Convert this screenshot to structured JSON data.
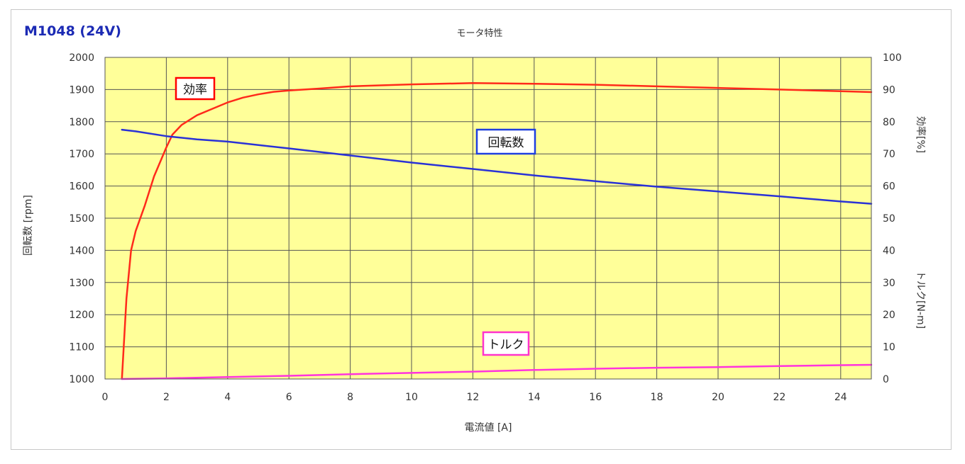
{
  "model_title": "M1048 (24V)",
  "chart_data": {
    "type": "line",
    "title": "モータ特性",
    "xlabel": "電流値 [A]",
    "ylabel_left": "回転数 [rpm]",
    "ylabel_right_top": "効率[%]",
    "ylabel_right_bottom": "トルク[N-m]",
    "xlim": [
      0,
      25
    ],
    "ylim_left": [
      1000,
      2000
    ],
    "ylim_right": [
      0,
      100
    ],
    "xticks": [
      0,
      2,
      4,
      6,
      8,
      10,
      12,
      14,
      16,
      18,
      20,
      22,
      24
    ],
    "yticks_left": [
      1000,
      1100,
      1200,
      1300,
      1400,
      1500,
      1600,
      1700,
      1800,
      1900,
      2000
    ],
    "yticks_right": [
      0,
      10,
      20,
      30,
      40,
      50,
      60,
      70,
      80,
      90,
      100
    ],
    "grid": true,
    "plot_background": "#ffff99",
    "series": [
      {
        "name": "効率",
        "axis": "right",
        "color": "#ff2a1a",
        "label_color": "#ff0000",
        "points": [
          [
            0.55,
            0
          ],
          [
            0.7,
            25
          ],
          [
            0.85,
            40
          ],
          [
            1.0,
            46
          ],
          [
            1.3,
            54
          ],
          [
            1.6,
            63
          ],
          [
            2.0,
            72
          ],
          [
            2.2,
            76
          ],
          [
            2.5,
            79
          ],
          [
            3.0,
            82
          ],
          [
            3.5,
            84
          ],
          [
            4.0,
            86
          ],
          [
            4.5,
            87.5
          ],
          [
            5.0,
            88.5
          ],
          [
            5.5,
            89.3
          ],
          [
            6.0,
            89.7
          ],
          [
            7.0,
            90.3
          ],
          [
            8.0,
            91
          ],
          [
            10.0,
            91.6
          ],
          [
            12.0,
            92
          ],
          [
            14.0,
            91.8
          ],
          [
            16.0,
            91.5
          ],
          [
            18.0,
            91
          ],
          [
            20.0,
            90.5
          ],
          [
            22.0,
            90
          ],
          [
            24.0,
            89.5
          ],
          [
            25.0,
            89.2
          ]
        ]
      },
      {
        "name": "回転数",
        "axis": "left",
        "color": "#2a32d6",
        "label_color": "#1f3fe0",
        "points": [
          [
            0.55,
            1775
          ],
          [
            1.0,
            1770
          ],
          [
            2.0,
            1755
          ],
          [
            3.0,
            1745
          ],
          [
            4.0,
            1738
          ],
          [
            6.0,
            1717
          ],
          [
            8.0,
            1695
          ],
          [
            10.0,
            1673
          ],
          [
            12.0,
            1653
          ],
          [
            14.0,
            1633
          ],
          [
            16.0,
            1615
          ],
          [
            18.0,
            1598
          ],
          [
            20.0,
            1583
          ],
          [
            22.0,
            1568
          ],
          [
            24.0,
            1552
          ],
          [
            25.0,
            1545
          ]
        ]
      },
      {
        "name": "トルク",
        "axis": "right",
        "color": "#ff33dd",
        "label_color": "#ff33cc",
        "points": [
          [
            0.55,
            0
          ],
          [
            2,
            0.2
          ],
          [
            4,
            0.6
          ],
          [
            6,
            1
          ],
          [
            8,
            1.5
          ],
          [
            10,
            1.9
          ],
          [
            12,
            2.3
          ],
          [
            14,
            2.8
          ],
          [
            16,
            3.2
          ],
          [
            18,
            3.5
          ],
          [
            20,
            3.7
          ],
          [
            22,
            4.0
          ],
          [
            24,
            4.3
          ],
          [
            25,
            4.4
          ]
        ]
      }
    ]
  }
}
